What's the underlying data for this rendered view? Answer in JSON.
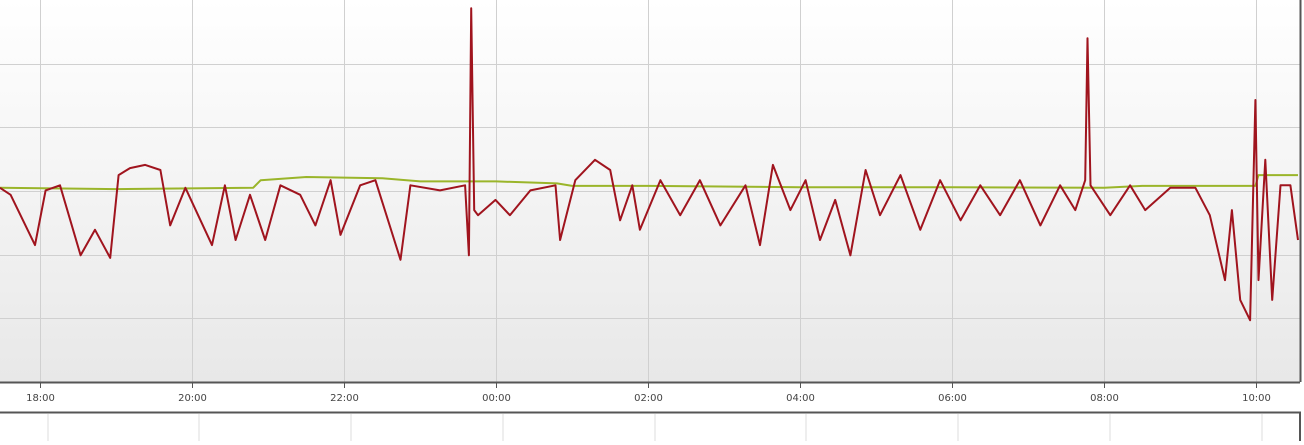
{
  "chart_data": {
    "type": "line",
    "xlim": [
      17.47,
      34.55
    ],
    "xticks": [
      {
        "value": 18,
        "label": "18:00"
      },
      {
        "value": 20,
        "label": "20:00"
      },
      {
        "value": 22,
        "label": "22:00"
      },
      {
        "value": 24,
        "label": "00:00"
      },
      {
        "value": 26,
        "label": "02:00"
      },
      {
        "value": 28,
        "label": "04:00"
      },
      {
        "value": 30,
        "label": "06:00"
      },
      {
        "value": 32,
        "label": "08:00"
      },
      {
        "value": 34,
        "label": "10:00"
      }
    ],
    "ylim": [
      0,
      6
    ],
    "yticks": [
      1,
      2,
      3,
      4,
      5
    ],
    "grid": true,
    "series": [
      {
        "color": "#a0141e",
        "x": [
          17.47,
          17.61,
          17.93,
          18.07,
          18.26,
          18.53,
          18.72,
          18.92,
          19.03,
          19.18,
          19.38,
          19.58,
          19.71,
          19.91,
          20.26,
          20.43,
          20.57,
          20.76,
          20.96,
          21.16,
          21.42,
          21.62,
          21.82,
          21.95,
          22.21,
          22.41,
          22.74,
          22.87,
          23.26,
          23.59,
          23.64,
          23.67,
          23.71,
          23.76,
          23.99,
          24.18,
          24.45,
          24.78,
          24.84,
          25.04,
          25.3,
          25.5,
          25.63,
          25.79,
          25.89,
          26.16,
          26.42,
          26.68,
          26.95,
          27.28,
          27.47,
          27.64,
          27.87,
          28.07,
          28.26,
          28.46,
          28.66,
          28.86,
          29.05,
          29.32,
          29.58,
          29.84,
          30.11,
          30.37,
          30.63,
          30.89,
          31.16,
          31.42,
          31.62,
          31.75,
          31.78,
          31.82,
          32.08,
          32.34,
          32.54,
          32.87,
          33.2,
          33.39,
          33.59,
          33.68,
          33.79,
          33.92,
          33.99,
          34.03,
          34.12,
          34.21,
          34.32,
          34.45,
          34.55
        ],
        "values": [
          3.05,
          2.94,
          2.15,
          3.01,
          3.09,
          1.99,
          2.39,
          1.95,
          3.25,
          3.36,
          3.41,
          3.33,
          2.46,
          3.05,
          2.15,
          3.09,
          2.23,
          2.94,
          2.23,
          3.09,
          2.94,
          2.46,
          3.17,
          2.31,
          3.09,
          3.17,
          1.92,
          3.09,
          3.01,
          3.09,
          1.99,
          5.87,
          2.7,
          2.62,
          2.86,
          2.62,
          3.01,
          3.09,
          2.23,
          3.17,
          3.49,
          3.33,
          2.54,
          3.09,
          2.39,
          3.17,
          2.62,
          3.17,
          2.46,
          3.09,
          2.15,
          3.41,
          2.7,
          3.17,
          2.23,
          2.86,
          1.99,
          3.33,
          2.62,
          3.25,
          2.39,
          3.17,
          2.54,
          3.09,
          2.62,
          3.17,
          2.46,
          3.09,
          2.7,
          3.17,
          5.4,
          3.09,
          2.62,
          3.09,
          2.7,
          3.05,
          3.05,
          2.62,
          1.6,
          2.7,
          1.29,
          0.97,
          4.43,
          1.6,
          3.49,
          1.29,
          3.09,
          3.09,
          2.23
        ]
      },
      {
        "color": "#9ab52a",
        "x": [
          17.47,
          19.0,
          20.8,
          20.9,
          21.5,
          22.5,
          23.0,
          24.0,
          24.8,
          25.0,
          26.0,
          28.0,
          30.0,
          32.0,
          32.5,
          33.99,
          34.03,
          34.55
        ],
        "values": [
          3.05,
          3.03,
          3.05,
          3.17,
          3.22,
          3.2,
          3.15,
          3.15,
          3.12,
          3.08,
          3.08,
          3.06,
          3.06,
          3.05,
          3.08,
          3.08,
          3.25,
          3.25
        ]
      }
    ]
  }
}
